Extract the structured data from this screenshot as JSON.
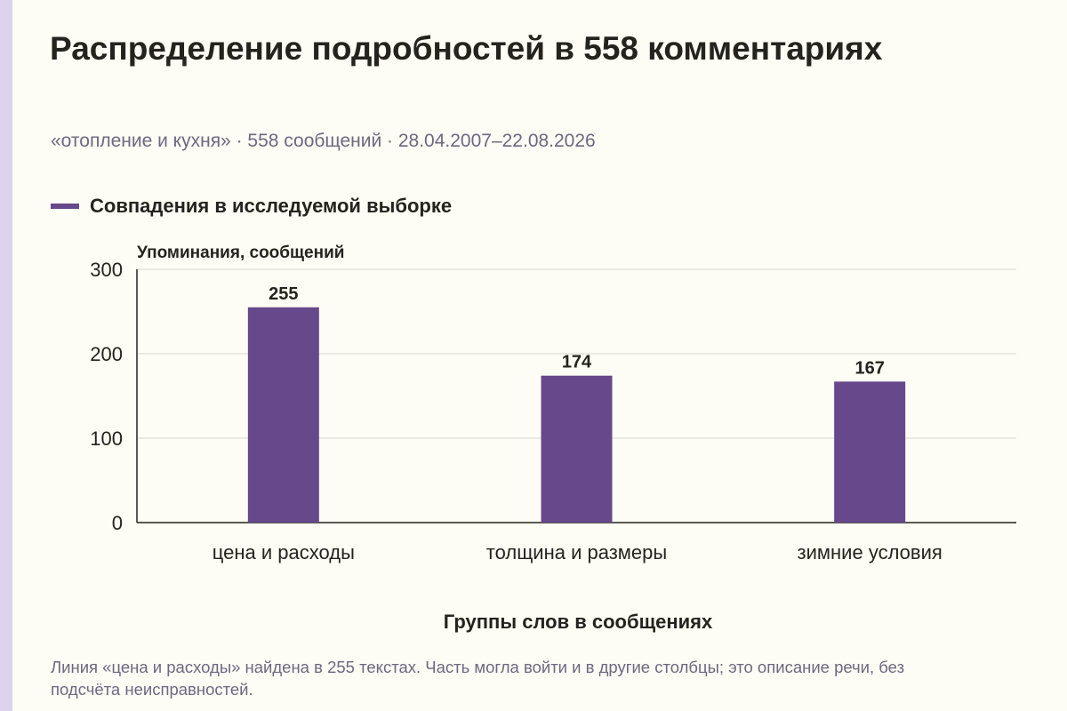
{
  "title": "Распределение подробностей в 558 комментариях",
  "subtitle": "«отопление и кухня» · 558 сообщений · 28.04.2007–22.08.2026",
  "note": "Линия «цена и расходы» найдена в 255 текстах. Часть могла войти и в другие столбцы; это описание речи, без подсчёта неисправностей.",
  "colors": {
    "bar": "#67488a",
    "grid": "#d9d7d0",
    "axis": "#23241d",
    "accent_strip": "#ddd3ee"
  },
  "chart_data": {
    "type": "bar",
    "categories": [
      "цена и расходы",
      "толщина и размеры",
      "зимние условия"
    ],
    "series": [
      {
        "name": "Совпадения в исследуемой выборке",
        "values": [
          255,
          174,
          167
        ]
      }
    ],
    "data_labels": [
      "255",
      "174",
      "167"
    ],
    "xlabel": "Группы слов в сообщениях",
    "ylabel": "Упоминания, сообщений",
    "ylim": [
      0,
      300
    ],
    "yticks": [
      0,
      100,
      200,
      300
    ],
    "ytick_labels": [
      "0",
      "100",
      "200",
      "300"
    ],
    "grid": true,
    "legend": "top-left"
  }
}
